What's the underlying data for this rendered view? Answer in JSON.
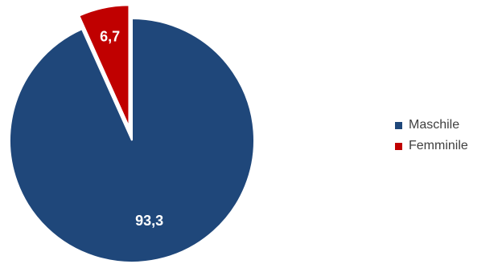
{
  "chart_data": {
    "type": "pie",
    "title": "",
    "series": [
      {
        "name": "Maschile",
        "value": 93.3,
        "label": "93,3",
        "color": "#1F477A"
      },
      {
        "name": "Femminile",
        "value": 6.7,
        "label": "6,7",
        "color": "#C00000"
      }
    ],
    "legend_placement": "right",
    "exploded_slice": "Femminile",
    "label_color": "#FFFFFF"
  }
}
